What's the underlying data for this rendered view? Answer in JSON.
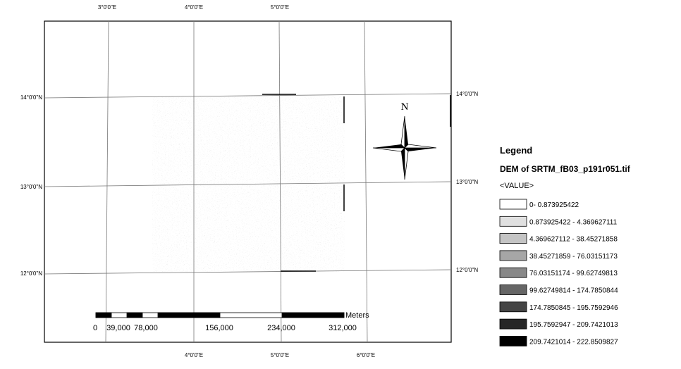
{
  "map": {
    "graticule": {
      "top": [
        "3°0'0\"E",
        "4°0'0\"E",
        "5°0'0\"E"
      ],
      "bottom": [
        "4°0'0\"E",
        "5°0'0\"E",
        "6°0'0\"E"
      ],
      "left": [
        "14°0'0\"N",
        "13°0'0\"N",
        "12°0'0\"N"
      ],
      "right": [
        "14°0'0\"N",
        "13°0'0\"N",
        "12°0'0\"N"
      ]
    },
    "north_label": "N",
    "scale_bar": {
      "unit": "Meters",
      "labels": [
        "0",
        "39,000",
        "78,000",
        "156,000",
        "234,000",
        "312,000"
      ]
    },
    "legend": {
      "title": "Legend",
      "layer": "DEM of SRTM_fB03_p191r051.tif",
      "field": "<VALUE>",
      "items": [
        {
          "label": "0- 0.873925422",
          "color": "#ffffff"
        },
        {
          "label": "0.873925422 - 4.369627111",
          "color": "#e0e0e0"
        },
        {
          "label": "4.369627112 - 38.45271858",
          "color": "#c4c4c4"
        },
        {
          "label": "38.45271859 - 76.03151173",
          "color": "#a6a6a6"
        },
        {
          "label": "76.03151174 - 99.62749813",
          "color": "#888888"
        },
        {
          "label": "99.62749814 - 174.7850844",
          "color": "#666666"
        },
        {
          "label": "174.7850845 - 195.7592946",
          "color": "#444444"
        },
        {
          "label": "195.7592947 - 209.7421013",
          "color": "#262626"
        },
        {
          "label": "209.7421014 - 222.8509827",
          "color": "#000000"
        }
      ]
    }
  }
}
